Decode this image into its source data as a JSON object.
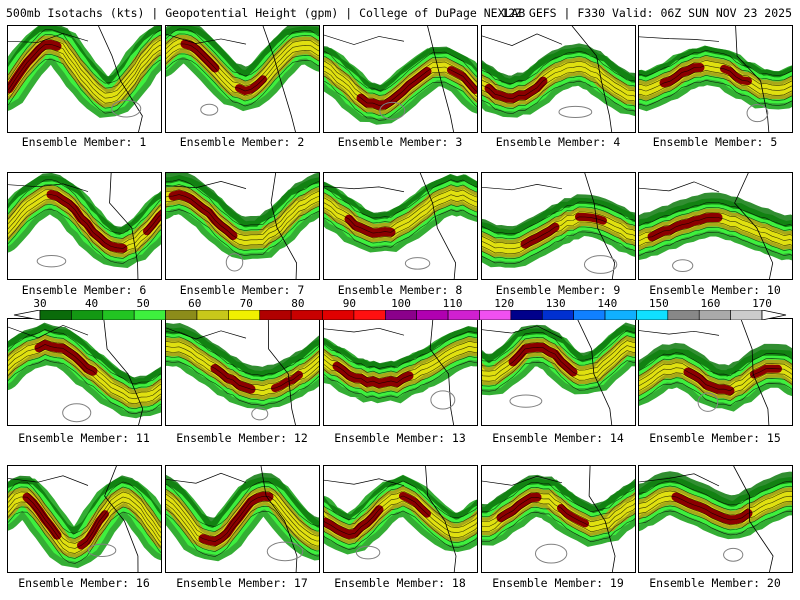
{
  "header": {
    "left": "500mb Isotachs (kts) | Geopotential Height (gpm) | College of DuPage NEXLAB",
    "right": "12Z GEFS | F330 Valid: 06Z SUN NOV 23 2025"
  },
  "colorbar": {
    "labels": [
      "30",
      "40",
      "50",
      "60",
      "70",
      "80",
      "90",
      "100",
      "110",
      "120",
      "130",
      "140",
      "150",
      "160",
      "170"
    ],
    "colors": [
      "#0a6b0a",
      "#139813",
      "#22c422",
      "#3ef03e",
      "#8c8c1a",
      "#c8c81a",
      "#f0f000",
      "#b00000",
      "#c80000",
      "#e00000",
      "#ff1010",
      "#8b008b",
      "#b000b0",
      "#d020d0",
      "#f050f0",
      "#00008b",
      "#0030d0",
      "#1080ff",
      "#10b0ff",
      "#10e0ff",
      "#888888",
      "#aaaaaa",
      "#cccccc"
    ]
  },
  "members": [
    {
      "label": "Ensemble Member: 1"
    },
    {
      "label": "Ensemble Member: 2"
    },
    {
      "label": "Ensemble Member: 3"
    },
    {
      "label": "Ensemble Member: 4"
    },
    {
      "label": "Ensemble Member: 5"
    },
    {
      "label": "Ensemble Member: 6"
    },
    {
      "label": "Ensemble Member: 7"
    },
    {
      "label": "Ensemble Member: 8"
    },
    {
      "label": "Ensemble Member: 9"
    },
    {
      "label": "Ensemble Member: 10"
    },
    {
      "label": "Ensemble Member: 11"
    },
    {
      "label": "Ensemble Member: 12"
    },
    {
      "label": "Ensemble Member: 13"
    },
    {
      "label": "Ensemble Member: 14"
    },
    {
      "label": "Ensemble Member: 15"
    },
    {
      "label": "Ensemble Member: 16"
    },
    {
      "label": "Ensemble Member: 17"
    },
    {
      "label": "Ensemble Member: 18"
    },
    {
      "label": "Ensemble Member: 19"
    },
    {
      "label": "Ensemble Member: 20"
    }
  ]
}
